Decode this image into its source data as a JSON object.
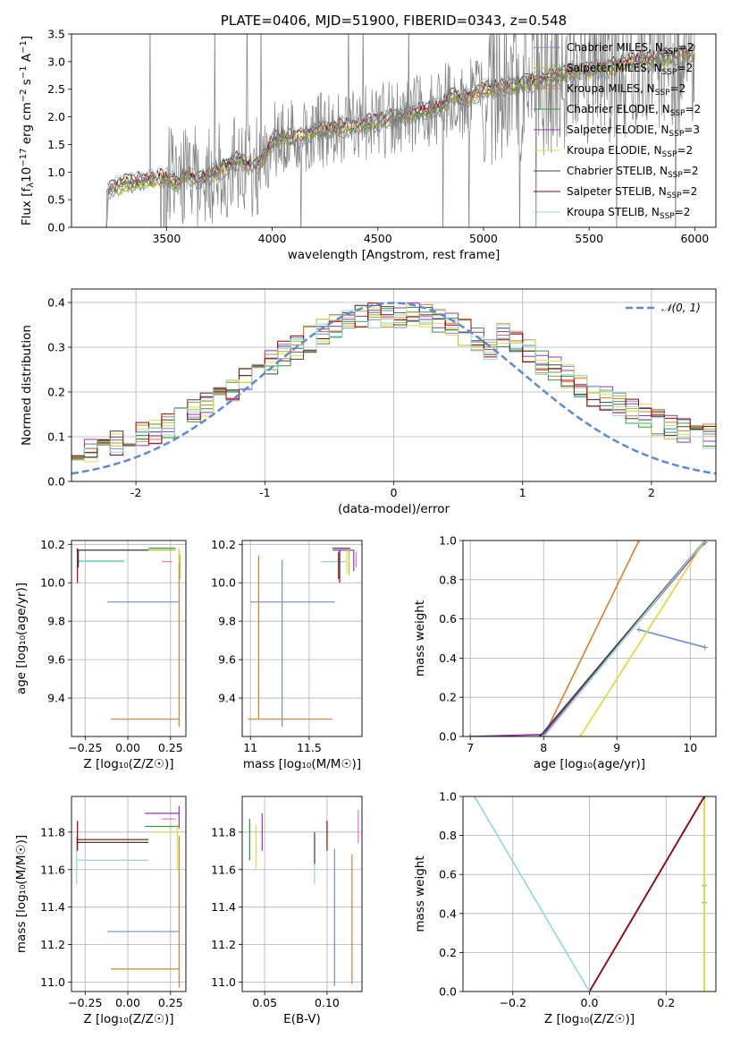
{
  "chart_data": [
    {
      "id": "spectrum",
      "type": "line",
      "title": "PLATE=0406, MJD=51900, FIBERID=0343, z=0.548",
      "xlabel": "wavelength [Angstrom, rest frame]",
      "ylabel": "Flux [f$_\\lambda$10$^{-17}$ erg cm$^{-2}$ s$^{-1}$ A$^{-1}$]",
      "ylabel_parts": [
        "Flux [f",
        "λ",
        "10",
        "−17",
        " erg cm",
        "−2",
        " s",
        "−1",
        " A",
        "−1",
        "]"
      ],
      "xlim": [
        3050,
        6100
      ],
      "ylim": [
        0,
        3.5
      ],
      "xticks": [
        3500,
        4000,
        4500,
        5000,
        5500,
        6000
      ],
      "yticks": [
        0.0,
        0.5,
        1.0,
        1.5,
        2.0,
        2.5,
        3.0,
        3.5
      ],
      "data_color": "#808080",
      "legend_location": "right",
      "legend": [
        {
          "text": "Chabrier MILES, N",
          "sub": "SSP",
          "tail": "=2",
          "color": "#6a8fd6"
        },
        {
          "text": "Salpeter MILES, N",
          "sub": "SSP",
          "tail": "=2",
          "color": "#bcbd22"
        },
        {
          "text": "Kroupa MILES, N",
          "sub": "SSP",
          "tail": "=2",
          "color": "#e07b2a"
        },
        {
          "text": "Chabrier ELODIE, N",
          "sub": "SSP",
          "tail": "=2",
          "color": "#2ca02c"
        },
        {
          "text": "Salpeter ELODIE, N",
          "sub": "SSP",
          "tail": "=3",
          "color": "#9b30b8"
        },
        {
          "text": "Kroupa ELODIE, N",
          "sub": "SSP",
          "tail": "=2",
          "color": "#dede40"
        },
        {
          "text": "Chabrier STELIB, N",
          "sub": "SSP",
          "tail": "=2",
          "color": "#404040"
        },
        {
          "text": "Salpeter STELIB, N",
          "sub": "SSP",
          "tail": "=2",
          "color": "#a00000"
        },
        {
          "text": "Kroupa STELIB, N",
          "sub": "SSP",
          "tail": "=2",
          "color": "#8ed8d8"
        }
      ],
      "model_continuum": {
        "x": [
          3200,
          3250,
          3300,
          3350,
          3400,
          3450,
          3500,
          3550,
          3600,
          3650,
          3700,
          3750,
          3800,
          3850,
          3900,
          3950,
          4000,
          4050,
          4100,
          4200,
          4300,
          4400,
          4500,
          4600,
          4700,
          4800,
          4850,
          4900,
          5000,
          5100,
          5200,
          5300,
          5400,
          5500,
          5600,
          5700,
          5800,
          5900,
          6000
        ],
        "y": [
          0.62,
          0.72,
          0.78,
          0.82,
          0.85,
          0.88,
          0.9,
          0.8,
          0.95,
          0.88,
          0.92,
          1.05,
          1.15,
          1.25,
          1.1,
          1.2,
          1.55,
          1.65,
          1.6,
          1.75,
          1.8,
          1.85,
          1.92,
          2.0,
          2.1,
          2.2,
          2.4,
          2.3,
          2.5,
          2.55,
          2.6,
          2.7,
          2.8,
          2.85,
          2.9,
          3.0,
          3.05,
          3.1,
          3.15
        ]
      }
    },
    {
      "id": "residuals",
      "type": "step",
      "xlabel": "(data-model)/error",
      "ylabel": "Normed distribution",
      "xlim": [
        -2.5,
        2.5
      ],
      "ylim": [
        0,
        0.43
      ],
      "xticks": [
        -2,
        -1,
        0,
        1,
        2
      ],
      "yticks": [
        0.0,
        0.1,
        0.2,
        0.3,
        0.4
      ],
      "grid": true,
      "reference": {
        "label": "𝒩(0, 1)",
        "mean": 0,
        "sigma": 1,
        "color": "#5b8ad6"
      },
      "legend_location": "top-right"
    },
    {
      "id": "age-vs-Z",
      "type": "errorbar",
      "xlabel": "Z [log₁₀(Z/Z☉)]",
      "ylabel": "age  [log₁₀(age/yr)]",
      "xlim": [
        -0.33,
        0.34
      ],
      "ylim": [
        9.2,
        10.22
      ],
      "xticks": [
        -0.25,
        0.0,
        0.25
      ],
      "xticklabels": [
        "−0.25",
        "0.00",
        "0.25"
      ],
      "yticks": [
        9.4,
        9.6,
        9.8,
        10.0,
        10.2
      ],
      "grid": true
    },
    {
      "id": "age-vs-mass",
      "type": "errorbar",
      "xlabel": "mass [log₁₀(M/M☉)]",
      "xlim": [
        10.93,
        11.95
      ],
      "ylim": [
        9.2,
        10.22
      ],
      "xticks": [
        11.0,
        11.5
      ],
      "yticks": [
        9.4,
        9.6,
        9.8,
        10.0,
        10.2
      ],
      "grid": true
    },
    {
      "id": "mass-weight-vs-age",
      "type": "line",
      "xlabel": "age  [log₁₀(age/yr)]",
      "ylabel": "mass weight",
      "xlim": [
        6.9,
        10.35
      ],
      "ylim": [
        0,
        1.0
      ],
      "xticks": [
        7,
        8,
        9,
        10
      ],
      "yticks": [
        0.0,
        0.2,
        0.4,
        0.6,
        0.8,
        1.0
      ],
      "grid": true
    },
    {
      "id": "mass-vs-Z",
      "type": "errorbar",
      "xlabel": "Z [log₁₀(Z/Z☉)]",
      "ylabel": "mass [log₁₀(M/M☉)]",
      "xlim": [
        -0.33,
        0.34
      ],
      "ylim": [
        10.95,
        11.99
      ],
      "xticks": [
        -0.25,
        0.0,
        0.25
      ],
      "xticklabels": [
        "−0.25",
        "0.00",
        "0.25"
      ],
      "yticks": [
        11.0,
        11.2,
        11.4,
        11.6,
        11.8
      ],
      "grid": true
    },
    {
      "id": "mass-vs-EBV",
      "type": "errorbar",
      "xlabel": "E(B-V)",
      "xlim": [
        0.032,
        0.128
      ],
      "ylim": [
        10.95,
        11.99
      ],
      "xticks": [
        0.05,
        0.1
      ],
      "xticklabels": [
        "0.05",
        "0.10"
      ],
      "yticks": [
        11.0,
        11.2,
        11.4,
        11.6,
        11.8
      ],
      "grid": true
    },
    {
      "id": "mass-weight-vs-Z",
      "type": "line",
      "xlabel": "Z [log₁₀(Z/Z☉)]",
      "ylabel": "mass weight",
      "xlim": [
        -0.33,
        0.33
      ],
      "ylim": [
        0,
        1.0
      ],
      "xticks": [
        -0.2,
        0.0,
        0.2
      ],
      "xticklabels": [
        "−0.2",
        "0.0",
        "0.2"
      ],
      "yticks": [
        0.0,
        0.2,
        0.4,
        0.6,
        0.8,
        1.0
      ],
      "grid": true
    }
  ],
  "models": [
    {
      "name": "Chabrier MILES",
      "color": "#6a8fd6",
      "age": [
        9.9,
        9.9
      ],
      "age_err": [
        0.22,
        0.22
      ],
      "Z": [
        -0.1,
        0.3
      ],
      "Zerr": [
        0.18,
        0.0
      ],
      "mass": 11.27,
      "mass_err": 0.45,
      "ebv": 0.113,
      "ebv_err": 0.27,
      "w_age": [
        [
          9.3,
          0.545
        ],
        [
          10.2,
          0.455
        ]
      ],
      "w_Z": [
        [
          0.3,
          0.545
        ],
        [
          0.3,
          0.455
        ]
      ]
    },
    {
      "name": "Salpeter MILES",
      "color": "#bcbd22",
      "age": [
        10.15,
        10.2
      ],
      "Z": [
        0.3,
        0.3
      ],
      "mass": 11.85,
      "ebv": 0.041,
      "w_age": [
        [
          8.5,
          0.0
        ],
        [
          10.2,
          1.0
        ]
      ],
      "w_Z": [
        [
          0.3,
          0.0
        ],
        [
          0.3,
          1.0
        ]
      ]
    },
    {
      "name": "Kroupa MILES",
      "color": "#e07b2a",
      "age": [
        9.29,
        10.0
      ],
      "Z": [
        0.0,
        0.3
      ],
      "mass": 11.07,
      "ebv": 0.12,
      "w_age": [
        [
          8.0,
          0.0
        ],
        [
          9.3,
          1.0
        ]
      ],
      "w_Z": [
        [
          0.0,
          0.0
        ],
        [
          0.3,
          1.0
        ]
      ]
    },
    {
      "name": "Chabrier ELODIE",
      "color": "#2ca02c",
      "age": [
        10.17
      ],
      "Z": [
        0.1
      ],
      "mass": 11.83,
      "ebv": 0.09,
      "w_age": [
        [
          7.95,
          0.0
        ],
        [
          10.2,
          1.0
        ]
      ],
      "w_Z": [
        [
          0.0,
          0.0
        ],
        [
          0.3,
          1.0
        ]
      ]
    },
    {
      "name": "Salpeter ELODIE",
      "color": "#9b30b8",
      "age": [
        10.15,
        10.17
      ],
      "Z": [
        0.2,
        0.3
      ],
      "mass": 11.9,
      "ebv": 0.125,
      "w_age": [
        [
          7.0,
          0.0
        ],
        [
          8.0,
          0.01
        ],
        [
          10.2,
          0.99
        ]
      ],
      "w_Z": [
        [
          0.0,
          0.0
        ],
        [
          0.3,
          1.0
        ]
      ]
    },
    {
      "name": "Kroupa ELODIE",
      "color": "#dede40",
      "age": [
        10.17
      ],
      "Z": [
        0.3
      ],
      "mass": 11.8,
      "ebv": 0.043,
      "w_age": [
        [
          8.5,
          0.0
        ],
        [
          10.2,
          1.0
        ]
      ],
      "w_Z": [
        [
          0.3,
          0.0
        ],
        [
          0.3,
          1.0
        ]
      ]
    },
    {
      "name": "Chabrier STELIB",
      "color": "#404040",
      "age": [
        10.17,
        10.1
      ],
      "Z": [
        -0.3,
        0.12
      ],
      "mass": 11.75,
      "ebv": 0.09,
      "w_age": [
        [
          7.95,
          0.0
        ],
        [
          10.2,
          1.0
        ]
      ],
      "w_Z": [
        [
          0.0,
          0.0
        ],
        [
          0.3,
          1.0
        ]
      ]
    },
    {
      "name": "Salpeter STELIB",
      "color": "#a00000",
      "age": [
        10.17
      ],
      "Z": [
        -0.3
      ],
      "mass": 11.76,
      "ebv": 0.1,
      "w_age": [
        [
          8.0,
          0.0
        ],
        [
          10.2,
          1.0
        ]
      ],
      "w_Z": [
        [
          0.0,
          0.0
        ],
        [
          0.3,
          1.0
        ]
      ]
    },
    {
      "name": "Kroupa STELIB",
      "color": "#8ed8d8",
      "age": [
        10.11
      ],
      "Z": [
        -0.3
      ],
      "mass": 11.65,
      "ebv": 0.09,
      "w_age": [
        [
          8.0,
          0.0
        ],
        [
          10.2,
          1.0
        ]
      ],
      "w_Z": [
        [
          -0.3,
          1.0
        ],
        [
          0.0,
          0.0
        ]
      ]
    }
  ]
}
